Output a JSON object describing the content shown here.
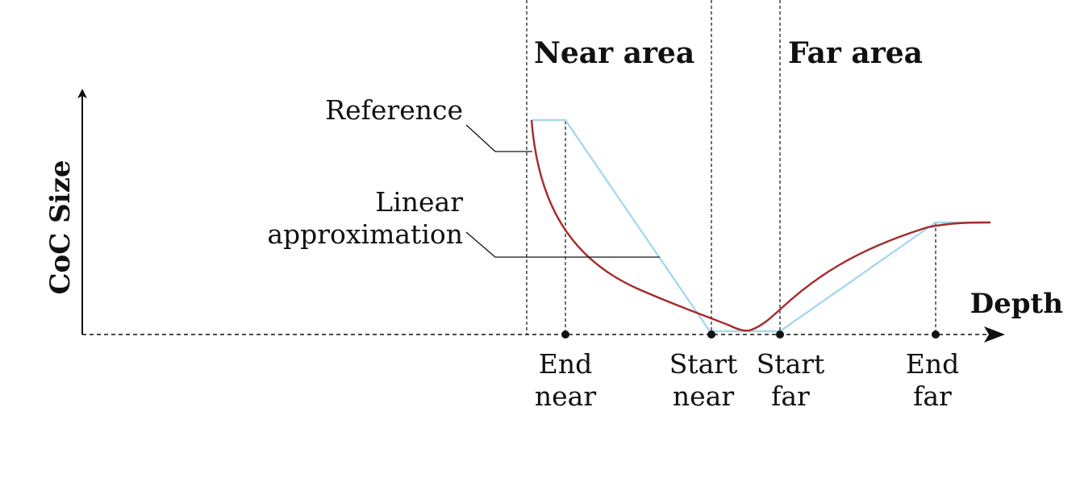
{
  "diagram": {
    "y_axis_label": "CoC Size",
    "x_axis_label": "Depth",
    "regions": {
      "near": "Near area",
      "far": "Far area"
    },
    "callouts": {
      "reference": "Reference",
      "linear_line1": "Linear",
      "linear_line2": "approximation"
    },
    "ticks": [
      {
        "line1": "End",
        "line2": "near"
      },
      {
        "line1": "Start",
        "line2": "near"
      },
      {
        "line1": "Start",
        "line2": "far"
      },
      {
        "line1": "End",
        "line2": "far"
      }
    ],
    "colors": {
      "reference_curve": "#a52a2a",
      "linear_curve": "#a8d8ee",
      "axis": "#111111"
    }
  }
}
